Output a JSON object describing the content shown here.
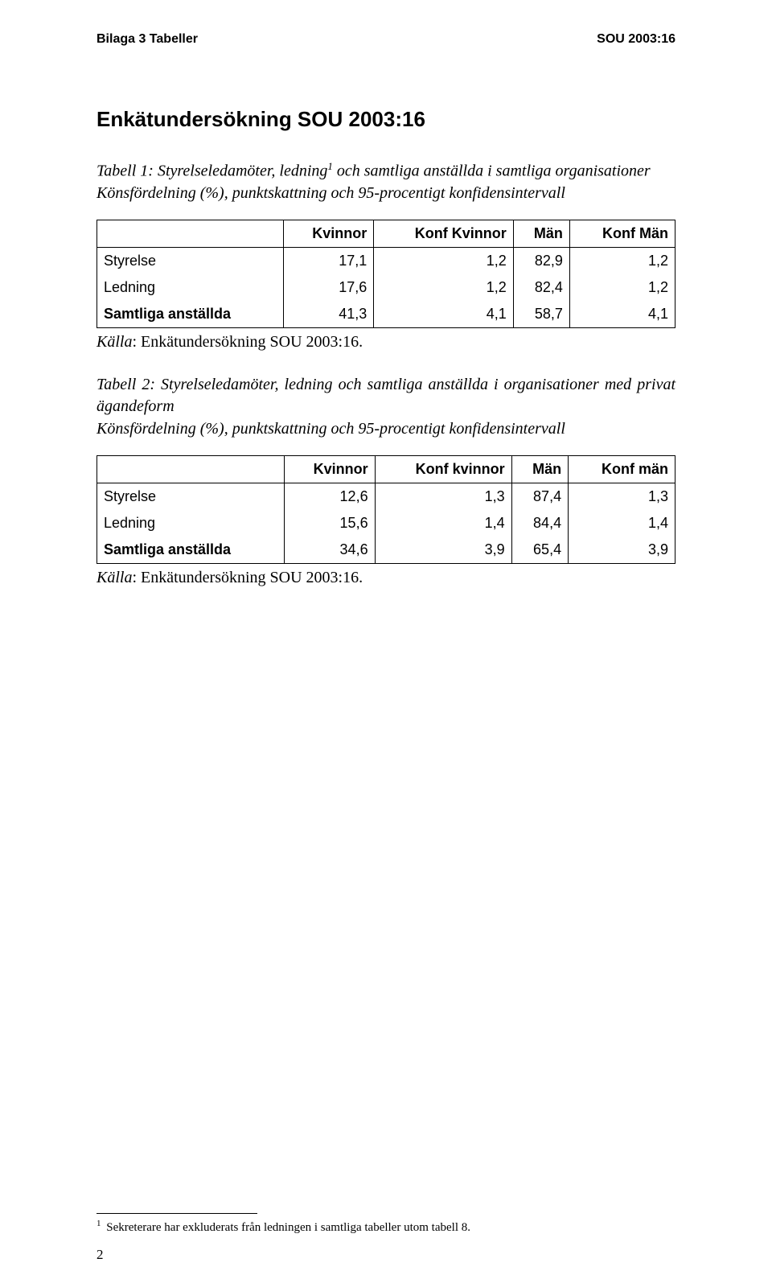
{
  "header": {
    "left": "Bilaga 3 Tabeller",
    "right": "SOU 2003:16"
  },
  "section_heading": "Enkätundersökning SOU 2003:16",
  "table1": {
    "caption_pre": "Tabell 1: Styrelseledamöter, ledning",
    "caption_sup": "1",
    "caption_post": " och samtliga anställda i samtliga organisationer",
    "caption_line2": "Könsfördelning (%), punktskattning och 95-procentigt konfidensintervall",
    "columns": [
      "",
      "Kvinnor",
      "Konf Kvinnor",
      "Män",
      "Konf Män"
    ],
    "rows": [
      {
        "label": "Styrelse",
        "v": [
          "17,1",
          "1,2",
          "82,9",
          "1,2"
        ],
        "bold": false
      },
      {
        "label": "Ledning",
        "v": [
          "17,6",
          "1,2",
          "82,4",
          "1,2"
        ],
        "bold": false
      },
      {
        "label": "Samtliga anställda",
        "v": [
          "41,3",
          "4,1",
          "58,7",
          "4,1"
        ],
        "bold": true
      }
    ],
    "source_label": "Källa",
    "source_text": ": Enkätundersökning SOU 2003:16."
  },
  "table2": {
    "caption_line1": "Tabell 2: Styrelseledamöter, ledning och samtliga anställda i organisationer med privat ägandeform",
    "caption_line2": "Könsfördelning (%), punktskattning och 95-procentigt konfidensintervall",
    "columns": [
      "",
      "Kvinnor",
      "Konf kvinnor",
      "Män",
      "Konf män"
    ],
    "rows": [
      {
        "label": "Styrelse",
        "v": [
          "12,6",
          "1,3",
          "87,4",
          "1,3"
        ],
        "bold": false
      },
      {
        "label": "Ledning",
        "v": [
          "15,6",
          "1,4",
          "84,4",
          "1,4"
        ],
        "bold": false
      },
      {
        "label": "Samtliga anställda",
        "v": [
          "34,6",
          "3,9",
          "65,4",
          "3,9"
        ],
        "bold": true
      }
    ],
    "source_label": "Källa",
    "source_text": ": Enkätundersökning SOU 2003:16."
  },
  "footnote": {
    "marker": "1",
    "text": " Sekreterare har exkluderats från ledningen i samtliga tabeller utom tabell 8."
  },
  "page_number": "2"
}
